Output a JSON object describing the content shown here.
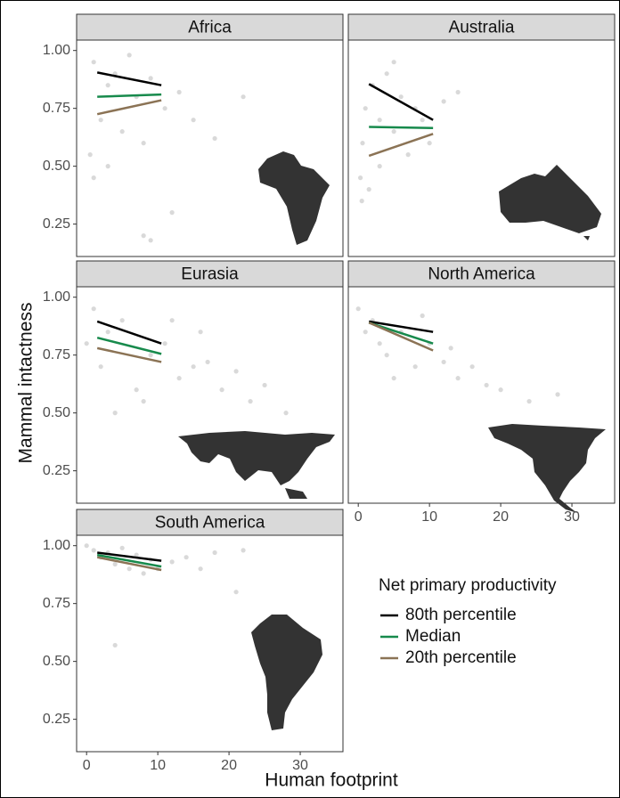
{
  "chart_data": {
    "type": "scatter",
    "x_label": "Human footprint",
    "y_label": "Mammal intactness",
    "legend_title": "Net primary productivity",
    "xlim": [
      -1.4,
      36
    ],
    "ylim": [
      0.11,
      1.045
    ],
    "xticks": [
      0,
      10,
      20,
      30
    ],
    "yticks": [
      {
        "value": 0.25,
        "label": "0.25"
      },
      {
        "value": 0.5,
        "label": "0.50"
      },
      {
        "value": 0.75,
        "label": "0.75"
      },
      {
        "value": 1.0,
        "label": "1.00"
      }
    ],
    "grid": false,
    "point_color": "#d0d0d0",
    "line_x": [
      1.5,
      10.5
    ],
    "series": [
      {
        "name": "80th percentile",
        "color": "#000000"
      },
      {
        "name": "Median",
        "color": "#178a4c"
      },
      {
        "name": "20th percentile",
        "color": "#8b7355"
      }
    ],
    "panels": [
      {
        "title": "Africa",
        "points": {
          "x": [
            0.5,
            1,
            2,
            3,
            4,
            5,
            6,
            7,
            8,
            9,
            11,
            13,
            15,
            18,
            22,
            8,
            9,
            3,
            1,
            12
          ],
          "y": [
            0.55,
            0.95,
            0.7,
            0.85,
            0.9,
            0.65,
            0.98,
            0.8,
            0.6,
            0.88,
            0.75,
            0.82,
            0.7,
            0.62,
            0.8,
            0.2,
            0.18,
            0.5,
            0.45,
            0.3
          ]
        },
        "lines": [
          [
            0.905,
            0.85
          ],
          [
            0.8,
            0.81
          ],
          [
            0.725,
            0.785
          ]
        ]
      },
      {
        "title": "Australia",
        "points": {
          "x": [
            0.3,
            0.6,
            1,
            2,
            3,
            4,
            5,
            6,
            7,
            8,
            9,
            10,
            12,
            14,
            0.5,
            1.5,
            3,
            5
          ],
          "y": [
            0.45,
            0.6,
            0.75,
            0.85,
            0.7,
            0.9,
            0.65,
            0.8,
            0.55,
            0.75,
            0.7,
            0.6,
            0.78,
            0.82,
            0.35,
            0.4,
            0.5,
            0.95
          ]
        },
        "lines": [
          [
            0.855,
            0.7
          ],
          [
            0.67,
            0.665
          ],
          [
            0.545,
            0.64
          ]
        ]
      },
      {
        "title": "Eurasia",
        "points": {
          "x": [
            0,
            1,
            2,
            3,
            5,
            7,
            9,
            11,
            13,
            15,
            17,
            19,
            21,
            23,
            25,
            28,
            4,
            8,
            12,
            16
          ],
          "y": [
            0.8,
            0.95,
            0.7,
            0.85,
            0.9,
            0.6,
            0.75,
            0.8,
            0.65,
            0.7,
            0.72,
            0.6,
            0.68,
            0.55,
            0.62,
            0.5,
            0.5,
            0.55,
            0.9,
            0.85
          ]
        },
        "lines": [
          [
            0.895,
            0.8
          ],
          [
            0.825,
            0.755
          ],
          [
            0.78,
            0.72
          ]
        ]
      },
      {
        "title": "North America",
        "points": {
          "x": [
            0,
            1,
            2,
            3,
            4,
            6,
            8,
            10,
            12,
            14,
            16,
            18,
            20,
            24,
            28,
            5,
            9,
            13
          ],
          "y": [
            0.95,
            0.85,
            0.9,
            0.8,
            0.75,
            0.85,
            0.7,
            0.8,
            0.72,
            0.65,
            0.7,
            0.62,
            0.6,
            0.55,
            0.58,
            0.65,
            0.92,
            0.78
          ]
        },
        "lines": [
          [
            0.895,
            0.85
          ],
          [
            0.89,
            0.8
          ],
          [
            0.89,
            0.77
          ]
        ]
      },
      {
        "title": "South America",
        "points": {
          "x": [
            0,
            1,
            2,
            3,
            4,
            5,
            6,
            7,
            8,
            9,
            10,
            12,
            14,
            16,
            18,
            22,
            4,
            21
          ],
          "y": [
            1.0,
            0.98,
            0.95,
            0.97,
            0.92,
            0.99,
            0.9,
            0.96,
            0.88,
            0.94,
            0.9,
            0.93,
            0.95,
            0.9,
            0.97,
            0.98,
            0.57,
            0.8
          ]
        },
        "lines": [
          [
            0.97,
            0.935
          ],
          [
            0.96,
            0.91
          ],
          [
            0.95,
            0.895
          ]
        ]
      }
    ]
  }
}
